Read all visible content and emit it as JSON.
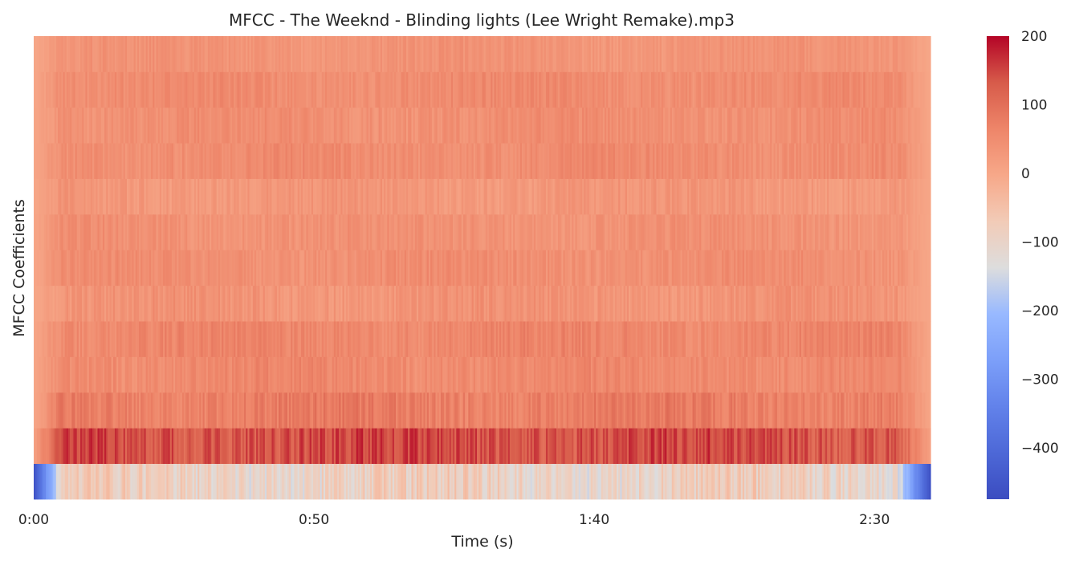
{
  "chart_data": {
    "type": "heatmap",
    "title": "MFCC - The Weeknd - Blinding lights (Lee Wright Remake).mp3",
    "xlabel": "Time (s)",
    "ylabel": "MFCC Coefficients",
    "x_ticks": [
      "0:00",
      "0:50",
      "1:40",
      "2:30"
    ],
    "x_tick_seconds": [
      0,
      50,
      100,
      150
    ],
    "xlim_seconds": [
      0,
      160
    ],
    "n_coefficients": 13,
    "colorbar": {
      "colormap": "coolwarm",
      "vmin": -475,
      "vmax": 200,
      "ticks": [
        200,
        100,
        0,
        -100,
        -200,
        -300,
        -400
      ],
      "tick_labels": [
        "200",
        "100",
        "0",
        "−100",
        "−200",
        "−300",
        "−400"
      ]
    },
    "coefficient_means": [
      -95,
      140,
      75,
      55,
      60,
      35,
      45,
      40,
      30,
      50,
      45,
      50,
      35
    ],
    "coefficient_spread": [
      45,
      35,
      25,
      20,
      20,
      20,
      18,
      18,
      18,
      18,
      18,
      18,
      15
    ],
    "intro_fade_seconds": 5,
    "outro_fade_start_seconds": 154,
    "grid": false
  }
}
